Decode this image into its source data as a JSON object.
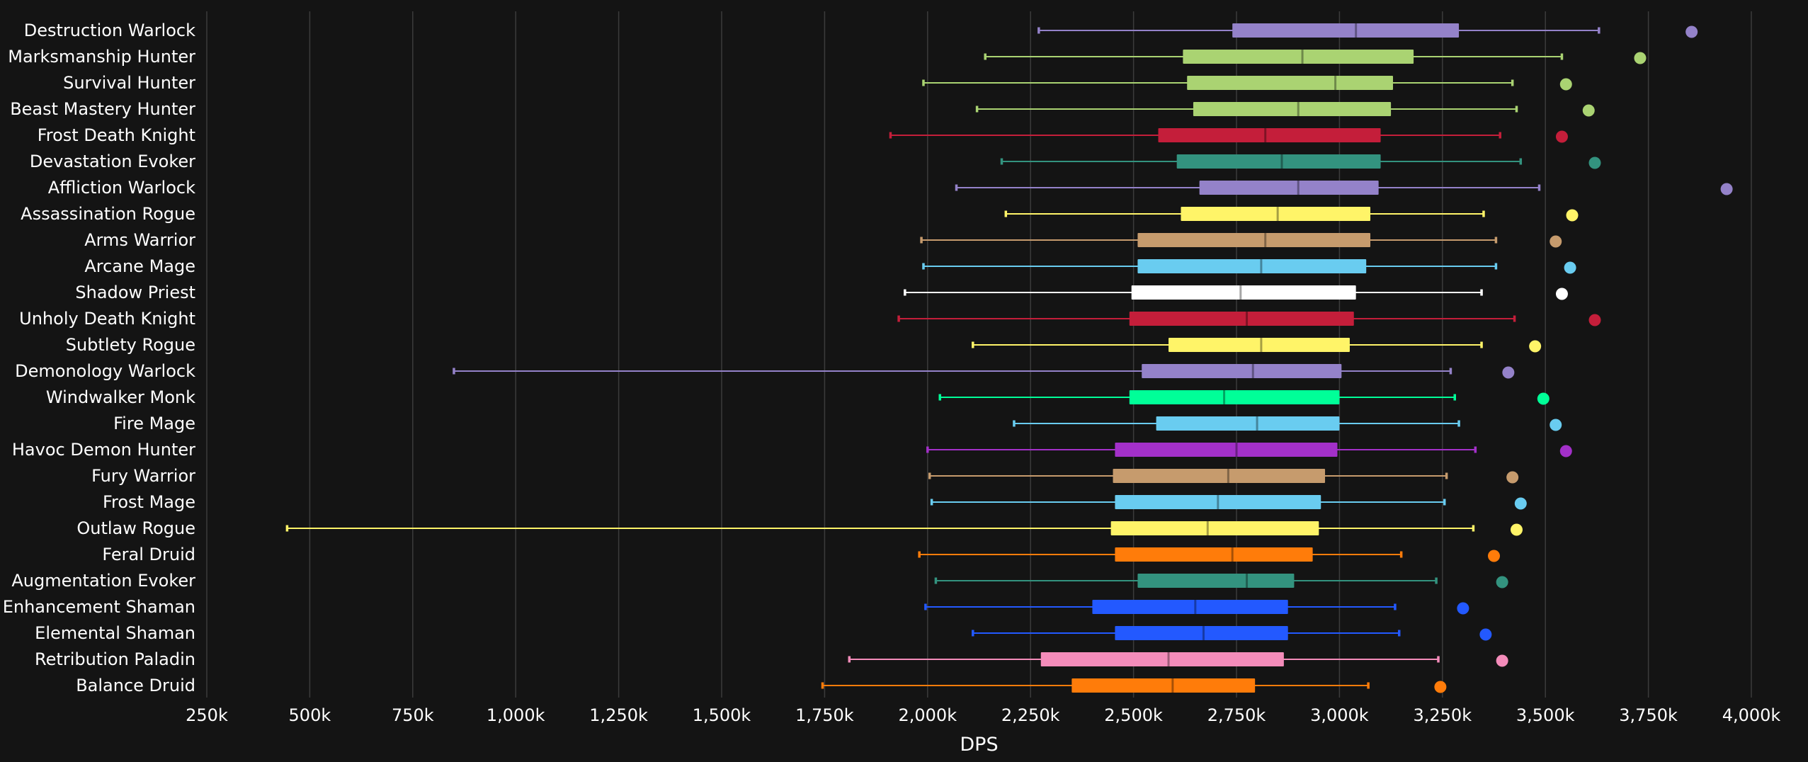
{
  "chart_data": {
    "type": "boxplot",
    "xlabel": "DPS",
    "xlim": [
      250,
      4000
    ],
    "x_ticks": [
      250,
      500,
      750,
      1000,
      1250,
      1500,
      1750,
      2000,
      2250,
      2500,
      2750,
      3000,
      3250,
      3500,
      3750,
      4000
    ],
    "x_tick_labels": [
      "250k",
      "500k",
      "750k",
      "1,000k",
      "1,250k",
      "1,500k",
      "1,750k",
      "2,000k",
      "2,250k",
      "2,500k",
      "2,750k",
      "3,000k",
      "3,250k",
      "3,500k",
      "3,750k",
      "4,000k"
    ],
    "grid": true,
    "series": [
      {
        "category": "Destruction Warlock",
        "color": "#9482c9",
        "min": 2270,
        "q1": 2740,
        "median": 3040,
        "q3": 3290,
        "max": 3630,
        "outlier": 3855
      },
      {
        "category": "Marksmanship Hunter",
        "color": "#aad372",
        "min": 2140,
        "q1": 2620,
        "median": 2910,
        "q3": 3180,
        "max": 3540,
        "outlier": 3730
      },
      {
        "category": "Survival Hunter",
        "color": "#aad372",
        "min": 1990,
        "q1": 2630,
        "median": 2990,
        "q3": 3130,
        "max": 3420,
        "outlier": 3550
      },
      {
        "category": "Beast Mastery Hunter",
        "color": "#aad372",
        "min": 2120,
        "q1": 2645,
        "median": 2900,
        "q3": 3125,
        "max": 3430,
        "outlier": 3605
      },
      {
        "category": "Frost Death Knight",
        "color": "#c41e3a",
        "min": 1910,
        "q1": 2560,
        "median": 2820,
        "q3": 3100,
        "max": 3390,
        "outlier": 3540
      },
      {
        "category": "Devastation Evoker",
        "color": "#33937f",
        "min": 2180,
        "q1": 2605,
        "median": 2860,
        "q3": 3100,
        "max": 3440,
        "outlier": 3620
      },
      {
        "category": "Affliction Warlock",
        "color": "#9482c9",
        "min": 2070,
        "q1": 2660,
        "median": 2900,
        "q3": 3095,
        "max": 3485,
        "outlier": 3940
      },
      {
        "category": "Assassination Rogue",
        "color": "#fff468",
        "min": 2190,
        "q1": 2615,
        "median": 2850,
        "q3": 3075,
        "max": 3350,
        "outlier": 3565
      },
      {
        "category": "Arms Warrior",
        "color": "#c69b6d",
        "min": 1985,
        "q1": 2510,
        "median": 2820,
        "q3": 3075,
        "max": 3380,
        "outlier": 3525
      },
      {
        "category": "Arcane Mage",
        "color": "#69ccf0",
        "min": 1990,
        "q1": 2510,
        "median": 2810,
        "q3": 3065,
        "max": 3380,
        "outlier": 3560
      },
      {
        "category": "Shadow Priest",
        "color": "#ffffff",
        "min": 1945,
        "q1": 2495,
        "median": 2760,
        "q3": 3040,
        "max": 3345,
        "outlier": 3540
      },
      {
        "category": "Unholy Death Knight",
        "color": "#c41e3a",
        "min": 1930,
        "q1": 2490,
        "median": 2775,
        "q3": 3035,
        "max": 3425,
        "outlier": 3620
      },
      {
        "category": "Subtlety Rogue",
        "color": "#fff468",
        "min": 2110,
        "q1": 2585,
        "median": 2810,
        "q3": 3025,
        "max": 3345,
        "outlier": 3475
      },
      {
        "category": "Demonology Warlock",
        "color": "#9482c9",
        "min": 850,
        "q1": 2520,
        "median": 2790,
        "q3": 3005,
        "max": 3270,
        "outlier": 3410
      },
      {
        "category": "Windwalker Monk",
        "color": "#00ff98",
        "min": 2030,
        "q1": 2490,
        "median": 2720,
        "q3": 3000,
        "max": 3280,
        "outlier": 3495
      },
      {
        "category": "Fire Mage",
        "color": "#69ccf0",
        "min": 2210,
        "q1": 2555,
        "median": 2800,
        "q3": 3000,
        "max": 3290,
        "outlier": 3525
      },
      {
        "category": "Havoc Demon Hunter",
        "color": "#a330c9",
        "min": 2000,
        "q1": 2455,
        "median": 2750,
        "q3": 2995,
        "max": 3330,
        "outlier": 3550
      },
      {
        "category": "Fury Warrior",
        "color": "#c69b6d",
        "min": 2005,
        "q1": 2450,
        "median": 2730,
        "q3": 2965,
        "max": 3260,
        "outlier": 3420
      },
      {
        "category": "Frost Mage",
        "color": "#69ccf0",
        "min": 2010,
        "q1": 2455,
        "median": 2705,
        "q3": 2955,
        "max": 3255,
        "outlier": 3440
      },
      {
        "category": "Outlaw Rogue",
        "color": "#fff468",
        "min": 445,
        "q1": 2445,
        "median": 2680,
        "q3": 2950,
        "max": 3325,
        "outlier": 3430
      },
      {
        "category": "Feral Druid",
        "color": "#ff7c0a",
        "min": 1980,
        "q1": 2455,
        "median": 2740,
        "q3": 2935,
        "max": 3150,
        "outlier": 3375
      },
      {
        "category": "Augmentation Evoker",
        "color": "#33937f",
        "min": 2020,
        "q1": 2510,
        "median": 2775,
        "q3": 2890,
        "max": 3235,
        "outlier": 3395
      },
      {
        "category": "Enhancement Shaman",
        "color": "#2359ff",
        "min": 1995,
        "q1": 2400,
        "median": 2650,
        "q3": 2875,
        "max": 3135,
        "outlier": 3300
      },
      {
        "category": "Elemental Shaman",
        "color": "#2359ff",
        "min": 2110,
        "q1": 2455,
        "median": 2670,
        "q3": 2875,
        "max": 3145,
        "outlier": 3355
      },
      {
        "category": "Retribution Paladin",
        "color": "#f48cba",
        "min": 1810,
        "q1": 2275,
        "median": 2585,
        "q3": 2865,
        "max": 3240,
        "outlier": 3395
      },
      {
        "category": "Balance Druid",
        "color": "#ff7c0a",
        "min": 1745,
        "q1": 2350,
        "median": 2595,
        "q3": 2795,
        "max": 3070,
        "outlier": 3245
      }
    ]
  }
}
